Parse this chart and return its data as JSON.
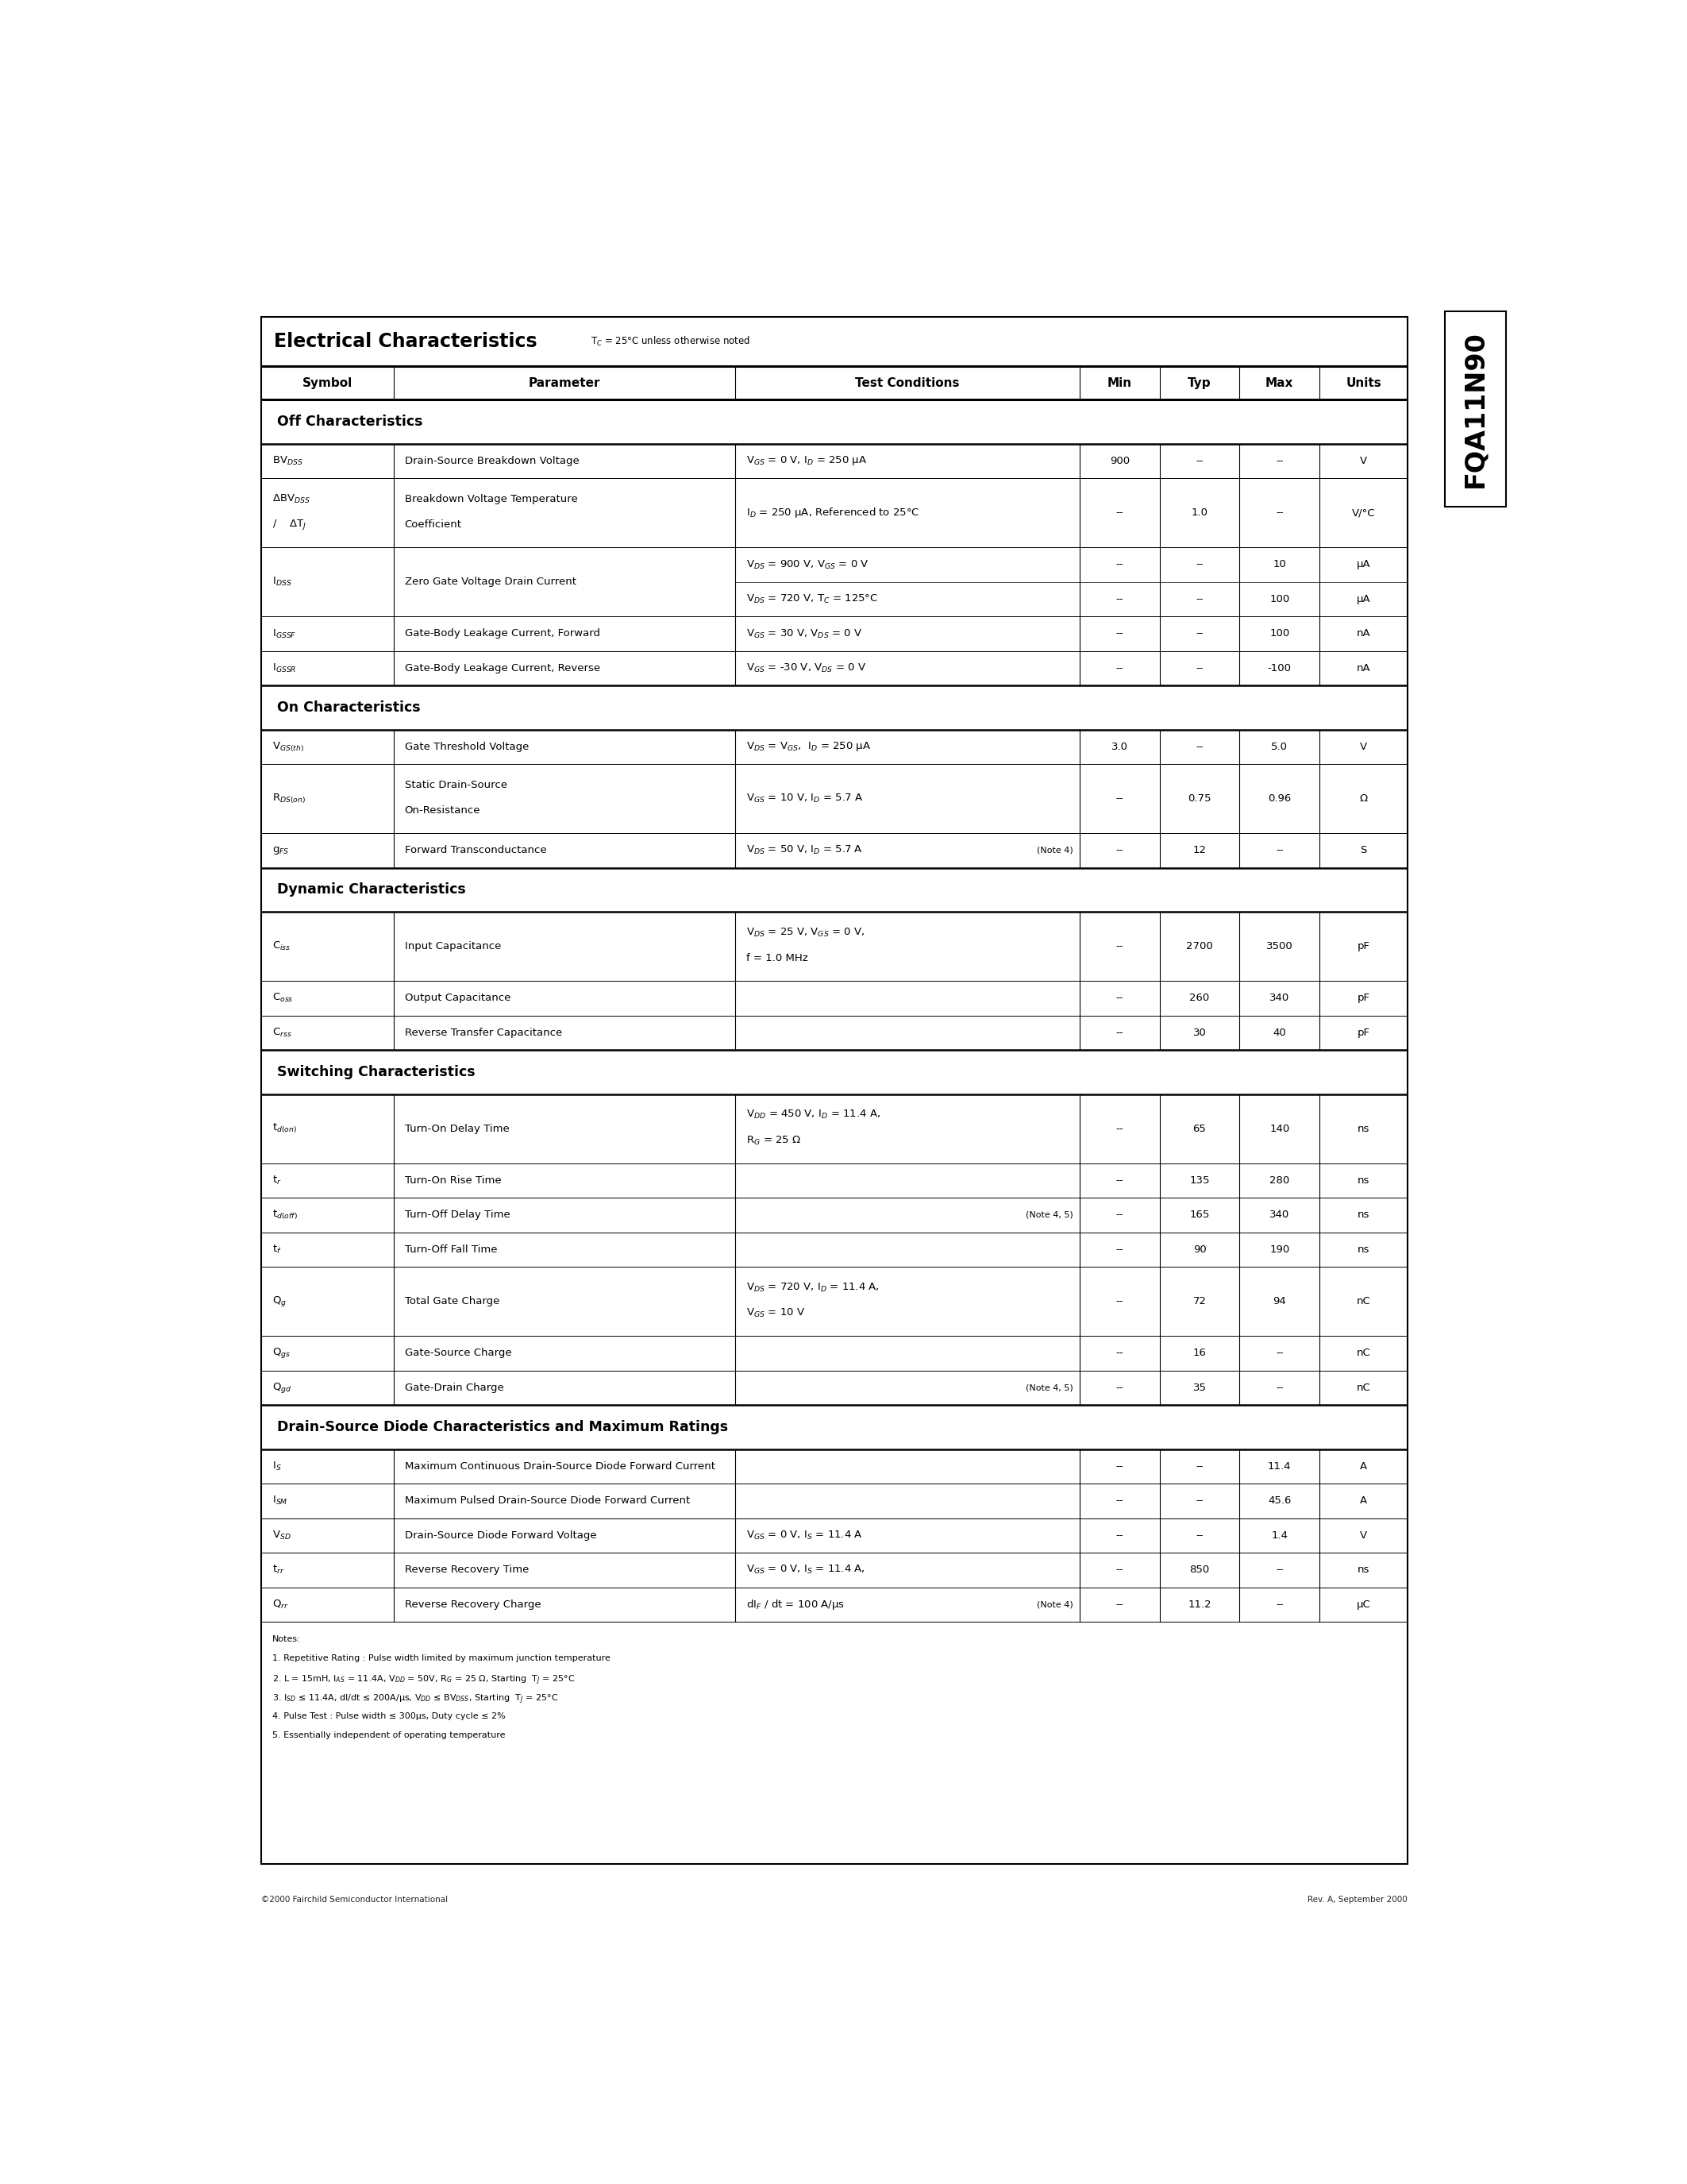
{
  "page_bg": "#ffffff",
  "title": "Electrical Characteristics",
  "title_note": "T$_C$ = 25°C unless otherwise noted",
  "part_number": "FQA11N90",
  "footer_left": "©2000 Fairchild Semiconductor International",
  "footer_right": "Rev. A, September 2000",
  "sections": [
    {
      "section_title": "Off Characteristics",
      "rows": [
        {
          "symbol": "BV$_{DSS}$",
          "parameter": "Drain-Source Breakdown Voltage",
          "conditions": "V$_{GS}$ = 0 V, I$_D$ = 250 μA",
          "note": "",
          "min": "900",
          "typ": "--",
          "max": "--",
          "units": "V",
          "multirow": false
        },
        {
          "symbol": "ΔBV$_{DSS}$\n/    ΔT$_J$",
          "parameter": "Breakdown Voltage Temperature\nCoefficient",
          "conditions": "I$_D$ = 250 μA, Referenced to 25°C",
          "note": "",
          "min": "--",
          "typ": "1.0",
          "max": "--",
          "units": "V/°C",
          "multirow": false,
          "tall": true
        },
        {
          "symbol": "I$_{DSS}$",
          "parameter": "Zero Gate Voltage Drain Current",
          "conditions_list": [
            "V$_{DS}$ = 900 V, V$_{GS}$ = 0 V",
            "V$_{DS}$ = 720 V, T$_C$ = 125°C"
          ],
          "note": "",
          "min_list": [
            "--",
            "--"
          ],
          "typ_list": [
            "--",
            "--"
          ],
          "max_list": [
            "10",
            "100"
          ],
          "units_list": [
            "μA",
            "μA"
          ],
          "multirow": true
        },
        {
          "symbol": "I$_{GSSF}$",
          "parameter": "Gate-Body Leakage Current, Forward",
          "conditions": "V$_{GS}$ = 30 V, V$_{DS}$ = 0 V",
          "note": "",
          "min": "--",
          "typ": "--",
          "max": "100",
          "units": "nA",
          "multirow": false
        },
        {
          "symbol": "I$_{GSSR}$",
          "parameter": "Gate-Body Leakage Current, Reverse",
          "conditions": "V$_{GS}$ = -30 V, V$_{DS}$ = 0 V",
          "note": "",
          "min": "--",
          "typ": "--",
          "max": "-100",
          "units": "nA",
          "multirow": false
        }
      ]
    },
    {
      "section_title": "On Characteristics",
      "rows": [
        {
          "symbol": "V$_{GS(th)}$",
          "parameter": "Gate Threshold Voltage",
          "conditions": "V$_{DS}$ = V$_{GS}$,  I$_D$ = 250 μA",
          "note": "",
          "min": "3.0",
          "typ": "--",
          "max": "5.0",
          "units": "V",
          "multirow": false
        },
        {
          "symbol": "R$_{DS(on)}$",
          "parameter": "Static Drain-Source\nOn-Resistance",
          "conditions": "V$_{GS}$ = 10 V, I$_D$ = 5.7 A",
          "note": "",
          "min": "--",
          "typ": "0.75",
          "max": "0.96",
          "units": "Ω",
          "multirow": false,
          "tall": true
        },
        {
          "symbol": "g$_{FS}$",
          "parameter": "Forward Transconductance",
          "conditions": "V$_{DS}$ = 50 V, I$_D$ = 5.7 A",
          "note": "(Note 4)",
          "min": "--",
          "typ": "12",
          "max": "--",
          "units": "S",
          "multirow": false
        }
      ]
    },
    {
      "section_title": "Dynamic Characteristics",
      "rows": [
        {
          "symbol": "C$_{iss}$",
          "parameter": "Input Capacitance",
          "conditions": "V$_{DS}$ = 25 V, V$_{GS}$ = 0 V,\nf = 1.0 MHz",
          "note": "",
          "min": "--",
          "typ": "2700",
          "max": "3500",
          "units": "pF",
          "multirow": false,
          "tall": true
        },
        {
          "symbol": "C$_{oss}$",
          "parameter": "Output Capacitance",
          "conditions": "",
          "note": "",
          "min": "--",
          "typ": "260",
          "max": "340",
          "units": "pF",
          "multirow": false
        },
        {
          "symbol": "C$_{rss}$",
          "parameter": "Reverse Transfer Capacitance",
          "conditions": "",
          "note": "",
          "min": "--",
          "typ": "30",
          "max": "40",
          "units": "pF",
          "multirow": false
        }
      ]
    },
    {
      "section_title": "Switching Characteristics",
      "rows": [
        {
          "symbol": "t$_{d(on)}$",
          "parameter": "Turn-On Delay Time",
          "conditions": "V$_{DD}$ = 450 V, I$_D$ = 11.4 A,\nR$_G$ = 25 Ω",
          "note": "",
          "min": "--",
          "typ": "65",
          "max": "140",
          "units": "ns",
          "multirow": false,
          "tall": true
        },
        {
          "symbol": "t$_r$",
          "parameter": "Turn-On Rise Time",
          "conditions": "",
          "note": "",
          "min": "--",
          "typ": "135",
          "max": "280",
          "units": "ns",
          "multirow": false
        },
        {
          "symbol": "t$_{d(off)}$",
          "parameter": "Turn-Off Delay Time",
          "conditions": "",
          "note": "(Note 4, 5)",
          "min": "--",
          "typ": "165",
          "max": "340",
          "units": "ns",
          "multirow": false
        },
        {
          "symbol": "t$_f$",
          "parameter": "Turn-Off Fall Time",
          "conditions": "",
          "note": "",
          "min": "--",
          "typ": "90",
          "max": "190",
          "units": "ns",
          "multirow": false
        },
        {
          "symbol": "Q$_g$",
          "parameter": "Total Gate Charge",
          "conditions": "V$_{DS}$ = 720 V, I$_D$ = 11.4 A,\nV$_{GS}$ = 10 V",
          "note": "",
          "min": "--",
          "typ": "72",
          "max": "94",
          "units": "nC",
          "multirow": false,
          "tall": true
        },
        {
          "symbol": "Q$_{gs}$",
          "parameter": "Gate-Source Charge",
          "conditions": "",
          "note": "",
          "min": "--",
          "typ": "16",
          "max": "--",
          "units": "nC",
          "multirow": false
        },
        {
          "symbol": "Q$_{gd}$",
          "parameter": "Gate-Drain Charge",
          "conditions": "",
          "note": "(Note 4, 5)",
          "min": "--",
          "typ": "35",
          "max": "--",
          "units": "nC",
          "multirow": false
        }
      ]
    },
    {
      "section_title": "Drain-Source Diode Characteristics and Maximum Ratings",
      "rows": [
        {
          "symbol": "I$_S$",
          "parameter": "Maximum Continuous Drain-Source Diode Forward Current",
          "conditions": "",
          "note": "",
          "min": "--",
          "typ": "--",
          "max": "11.4",
          "units": "A",
          "multirow": false
        },
        {
          "symbol": "I$_{SM}$",
          "parameter": "Maximum Pulsed Drain-Source Diode Forward Current",
          "conditions": "",
          "note": "",
          "min": "--",
          "typ": "--",
          "max": "45.6",
          "units": "A",
          "multirow": false
        },
        {
          "symbol": "V$_{SD}$",
          "parameter": "Drain-Source Diode Forward Voltage",
          "conditions": "V$_{GS}$ = 0 V, I$_S$ = 11.4 A",
          "note": "",
          "min": "--",
          "typ": "--",
          "max": "1.4",
          "units": "V",
          "multirow": false
        },
        {
          "symbol": "t$_{rr}$",
          "parameter": "Reverse Recovery Time",
          "conditions": "V$_{GS}$ = 0 V, I$_S$ = 11.4 A,",
          "note": "",
          "min": "--",
          "typ": "850",
          "max": "--",
          "units": "ns",
          "multirow": false
        },
        {
          "symbol": "Q$_{rr}$",
          "parameter": "Reverse Recovery Charge",
          "conditions": "dI$_F$ / dt = 100 A/μs",
          "note": "(Note 4)",
          "min": "--",
          "typ": "11.2",
          "max": "--",
          "units": "μC",
          "multirow": false
        }
      ]
    }
  ],
  "notes_lines": [
    "Notes:",
    "1. Repetitive Rating : Pulse width limited by maximum junction temperature",
    "2. L = 15mH, I$_{AS}$ = 11.4A, V$_{DD}$ = 50V, R$_G$ = 25 Ω, Starting  T$_J$ = 25°C",
    "3. I$_{SD}$ ≤ 11.4A, dI/dt ≤ 200A/μs, V$_{DD}$ ≤ BV$_{DSS}$, Starting  T$_J$ = 25°C",
    "4. Pulse Test : Pulse width ≤ 300μs, Duty cycle ≤ 2%",
    "5. Essentially independent of operating temperature"
  ]
}
